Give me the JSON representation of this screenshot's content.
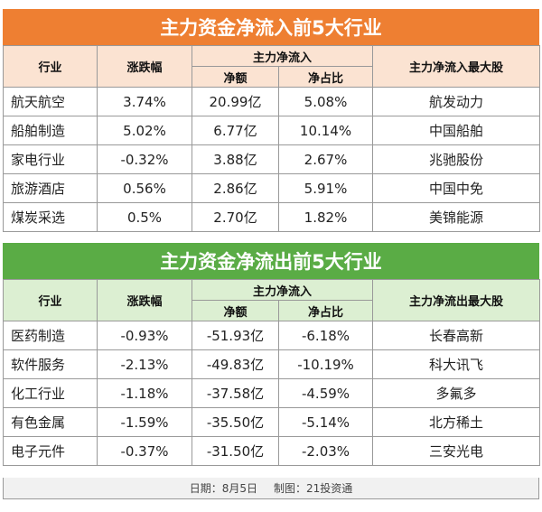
{
  "inflow": {
    "title": "主力资金净流入前5大行业",
    "headers": {
      "industry": "行业",
      "change": "涨跌幅",
      "main_flow": "主力净流入",
      "net_amount": "净额",
      "net_ratio": "净占比",
      "top_stock": "主力净流入最大股"
    },
    "rows": [
      {
        "industry": "航天航空",
        "change": "3.74%",
        "net_amount": "20.99亿",
        "net_ratio": "5.08%",
        "top_stock": "航发动力"
      },
      {
        "industry": "船舶制造",
        "change": "5.02%",
        "net_amount": "6.77亿",
        "net_ratio": "10.14%",
        "top_stock": "中国船舶"
      },
      {
        "industry": "家电行业",
        "change": "-0.32%",
        "net_amount": "3.88亿",
        "net_ratio": "2.67%",
        "top_stock": "兆驰股份"
      },
      {
        "industry": "旅游酒店",
        "change": "0.56%",
        "net_amount": "2.86亿",
        "net_ratio": "5.91%",
        "top_stock": "中国中免"
      },
      {
        "industry": "煤炭采选",
        "change": "0.5%",
        "net_amount": "2.70亿",
        "net_ratio": "1.82%",
        "top_stock": "美锦能源"
      }
    ]
  },
  "outflow": {
    "title": "主力资金净流出前5大行业",
    "headers": {
      "industry": "行业",
      "change": "涨跌幅",
      "main_flow": "主力净流入",
      "net_amount": "净额",
      "net_ratio": "净占比",
      "top_stock": "主力净流出最大股"
    },
    "rows": [
      {
        "industry": "医药制造",
        "change": "-0.93%",
        "net_amount": "-51.93亿",
        "net_ratio": "-6.18%",
        "top_stock": "长春高新"
      },
      {
        "industry": "软件服务",
        "change": "-2.13%",
        "net_amount": "-49.83亿",
        "net_ratio": "-10.19%",
        "top_stock": "科大讯飞"
      },
      {
        "industry": "化工行业",
        "change": "-1.18%",
        "net_amount": "-37.58亿",
        "net_ratio": "-4.59%",
        "top_stock": "多氟多"
      },
      {
        "industry": "有色金属",
        "change": "-1.59%",
        "net_amount": "-35.50亿",
        "net_ratio": "-5.14%",
        "top_stock": "北方稀土"
      },
      {
        "industry": "电子元件",
        "change": "-0.37%",
        "net_amount": "-31.50亿",
        "net_ratio": "-2.03%",
        "top_stock": "三安光电"
      }
    ]
  },
  "footer": {
    "date": "日期：8月5日",
    "credit": "制图：21投资通"
  },
  "colors": {
    "inflow_banner": "#ee7f32",
    "inflow_header": "#fbe3d2",
    "outflow_banner": "#5aac45",
    "outflow_header": "#dcefd2"
  }
}
